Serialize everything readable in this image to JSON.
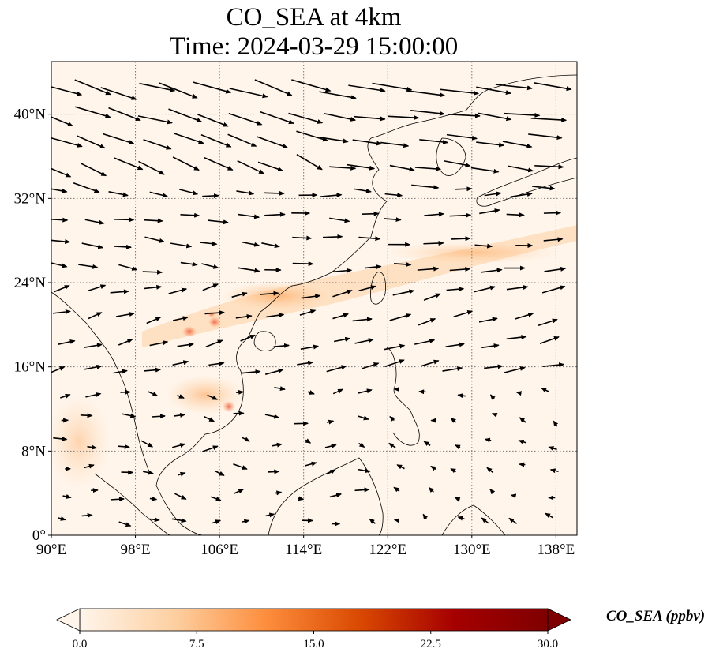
{
  "title": {
    "line1": "CO_SEA at 4km",
    "line2": "Time: 2024-03-29 15:00:00"
  },
  "map": {
    "lon_range": [
      90,
      140
    ],
    "lat_range": [
      0,
      45
    ],
    "lon_ticks": [
      {
        "value": 90,
        "label": "90°E"
      },
      {
        "value": 98,
        "label": "98°E"
      },
      {
        "value": 106,
        "label": "106°E"
      },
      {
        "value": 114,
        "label": "114°E"
      },
      {
        "value": 122,
        "label": "122°E"
      },
      {
        "value": 130,
        "label": "130°E"
      },
      {
        "value": 138,
        "label": "138°E"
      }
    ],
    "lat_ticks": [
      {
        "value": 0,
        "label": "0°"
      },
      {
        "value": 8,
        "label": "8°N"
      },
      {
        "value": 16,
        "label": "16°N"
      },
      {
        "value": 24,
        "label": "24°N"
      },
      {
        "value": 32,
        "label": "32°N"
      },
      {
        "value": 40,
        "label": "40°N"
      }
    ],
    "gridlines": true,
    "background_color": "#fff5eb",
    "coastline_color": "#000000",
    "arrow_color": "#000000"
  },
  "colorbar": {
    "label": "CO_SEA (ppbv)",
    "min": 0,
    "max": 30,
    "extend": "both",
    "colormap": "OrRd",
    "stops": [
      "#fff5eb",
      "#fdd0a2",
      "#fd8d3c",
      "#d94801",
      "#a50000",
      "#7f0000"
    ],
    "ticks": [
      {
        "value": 0,
        "label": "0.0"
      },
      {
        "value": 7.5,
        "label": "7.5"
      },
      {
        "value": 15,
        "label": "15.0"
      },
      {
        "value": 22.5,
        "label": "22.5"
      },
      {
        "value": 30,
        "label": "30.0"
      }
    ]
  }
}
